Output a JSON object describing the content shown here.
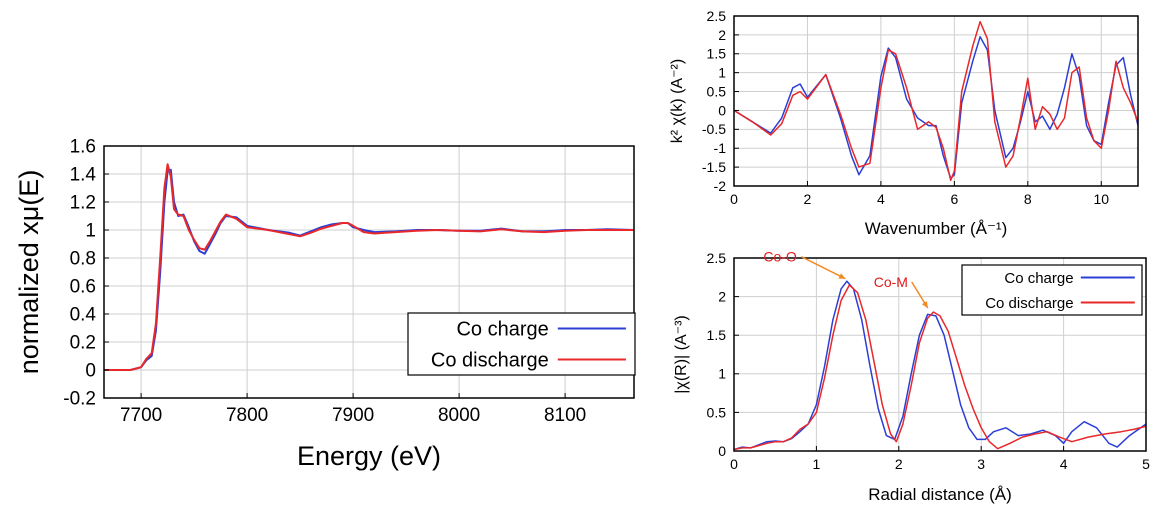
{
  "colors": {
    "charge": "#2b3fd6",
    "discharge": "#e8282b",
    "annotation": "#e31a1c",
    "arrow": "#f08a24",
    "grid": "#cfcfcf"
  },
  "chart_data": [
    {
      "id": "xanes",
      "type": "line",
      "title": "",
      "xlabel": "Energy    (eV)",
      "ylabel": "normalized xμ(E)",
      "xlim": [
        7665,
        8165
      ],
      "ylim": [
        -0.2,
        1.6
      ],
      "xticks": [
        7700,
        7800,
        7900,
        8000,
        8100
      ],
      "yticks": [
        -0.2,
        0,
        0.2,
        0.4,
        0.6,
        0.8,
        1,
        1.2,
        1.4,
        1.6
      ],
      "xtick_labels": [
        "7700",
        "7800",
        "7900",
        "8000",
        "8100"
      ],
      "ytick_labels": [
        "-0.2",
        "0",
        "0.2",
        "0.4",
        "0.6",
        "0.8",
        "1",
        "1.2",
        "1.4",
        "1.6"
      ],
      "grid": true,
      "legend_position": "bottom-right",
      "series": [
        {
          "name": "Co charge",
          "color_key": "charge",
          "x": [
            7665,
            7690,
            7700,
            7705,
            7710,
            7714,
            7718,
            7722,
            7725,
            7728,
            7731,
            7735,
            7740,
            7745,
            7750,
            7755,
            7760,
            7765,
            7770,
            7775,
            7780,
            7790,
            7800,
            7820,
            7840,
            7850,
            7860,
            7870,
            7880,
            7890,
            7895,
            7900,
            7910,
            7920,
            7940,
            7960,
            7980,
            8000,
            8020,
            8040,
            8060,
            8080,
            8100,
            8120,
            8140,
            8165
          ],
          "y": [
            0,
            0,
            0.02,
            0.07,
            0.1,
            0.28,
            0.7,
            1.2,
            1.42,
            1.43,
            1.2,
            1.1,
            1.11,
            1.02,
            0.92,
            0.85,
            0.83,
            0.9,
            0.97,
            1.05,
            1.1,
            1.09,
            1.03,
            1.0,
            0.98,
            0.96,
            0.99,
            1.02,
            1.04,
            1.05,
            1.05,
            1.02,
            1.0,
            0.985,
            0.99,
            1.0,
            1.0,
            0.995,
            0.995,
            1.01,
            0.99,
            0.99,
            1.0,
            1.0,
            1.005,
            1.0
          ]
        },
        {
          "name": "Co discharge",
          "color_key": "discharge",
          "x": [
            7665,
            7690,
            7700,
            7705,
            7710,
            7714,
            7718,
            7722,
            7725,
            7728,
            7731,
            7735,
            7740,
            7745,
            7750,
            7755,
            7760,
            7765,
            7770,
            7775,
            7780,
            7790,
            7800,
            7820,
            7840,
            7850,
            7860,
            7870,
            7880,
            7890,
            7895,
            7900,
            7910,
            7920,
            7940,
            7960,
            7980,
            8000,
            8020,
            8040,
            8060,
            8080,
            8100,
            8120,
            8140,
            8165
          ],
          "y": [
            0,
            0,
            0.02,
            0.08,
            0.12,
            0.33,
            0.8,
            1.3,
            1.47,
            1.38,
            1.15,
            1.11,
            1.1,
            1.0,
            0.93,
            0.87,
            0.86,
            0.92,
            0.99,
            1.06,
            1.11,
            1.08,
            1.02,
            1.0,
            0.97,
            0.955,
            0.98,
            1.01,
            1.03,
            1.05,
            1.05,
            1.03,
            0.985,
            0.975,
            0.985,
            0.995,
            1.0,
            0.995,
            0.99,
            1.005,
            0.99,
            0.985,
            0.995,
            1.0,
            1.0,
            1.0
          ]
        }
      ]
    },
    {
      "id": "exafs_k",
      "type": "line",
      "title": "",
      "xlabel": "Wavenumber   (Å⁻¹)",
      "ylabel": "k² χ(k)    (A⁻²)",
      "xlim": [
        0,
        11
      ],
      "ylim": [
        -2,
        2.5
      ],
      "xticks": [
        0,
        2,
        4,
        6,
        8,
        10
      ],
      "yticks": [
        -2,
        -1.5,
        -1,
        -0.5,
        0,
        0.5,
        1,
        1.5,
        2,
        2.5
      ],
      "xtick_labels": [
        "0",
        "2",
        "4",
        "6",
        "8",
        "10"
      ],
      "ytick_labels": [
        "-2",
        "-1.5",
        "-1",
        "-0.5",
        "0",
        "0.5",
        "1",
        "1.5",
        "2",
        "2.5"
      ],
      "grid": true,
      "series": [
        {
          "name": "Co charge",
          "color_key": "charge",
          "x": [
            0,
            0.5,
            1.0,
            1.3,
            1.6,
            1.8,
            2.0,
            2.5,
            2.9,
            3.2,
            3.4,
            3.7,
            4.0,
            4.2,
            4.4,
            4.7,
            5.0,
            5.3,
            5.5,
            5.7,
            5.9,
            6.0,
            6.2,
            6.5,
            6.7,
            6.9,
            7.1,
            7.4,
            7.6,
            7.8,
            8.0,
            8.2,
            8.4,
            8.6,
            8.8,
            9.0,
            9.2,
            9.4,
            9.6,
            9.8,
            10.0,
            10.2,
            10.4,
            10.6,
            10.8,
            11.0
          ],
          "y": [
            0,
            -0.3,
            -0.6,
            -0.2,
            0.6,
            0.7,
            0.35,
            0.95,
            -0.2,
            -1.2,
            -1.7,
            -1.2,
            0.9,
            1.65,
            1.4,
            0.3,
            -0.2,
            -0.4,
            -0.4,
            -1.2,
            -1.8,
            -1.7,
            0.2,
            1.3,
            1.95,
            1.6,
            0.0,
            -1.25,
            -1.0,
            -0.3,
            0.5,
            -0.3,
            -0.15,
            -0.5,
            -0.1,
            0.6,
            1.5,
            0.9,
            -0.4,
            -0.8,
            -0.9,
            0.2,
            1.2,
            1.4,
            0.4,
            -0.4
          ]
        },
        {
          "name": "Co discharge",
          "color_key": "discharge",
          "x": [
            0,
            0.5,
            1.0,
            1.3,
            1.6,
            1.8,
            2.0,
            2.5,
            2.9,
            3.2,
            3.4,
            3.7,
            4.0,
            4.2,
            4.4,
            4.7,
            5.0,
            5.3,
            5.5,
            5.7,
            5.9,
            6.0,
            6.2,
            6.5,
            6.7,
            6.9,
            7.1,
            7.4,
            7.6,
            7.8,
            8.0,
            8.2,
            8.4,
            8.6,
            8.8,
            9.0,
            9.2,
            9.4,
            9.6,
            9.8,
            10.0,
            10.2,
            10.4,
            10.6,
            10.8,
            11.0
          ],
          "y": [
            0,
            -0.3,
            -0.65,
            -0.35,
            0.4,
            0.5,
            0.3,
            0.95,
            -0.1,
            -1.0,
            -1.5,
            -1.4,
            0.6,
            1.6,
            1.5,
            0.6,
            -0.5,
            -0.3,
            -0.45,
            -1.0,
            -1.85,
            -1.6,
            0.5,
            1.7,
            2.35,
            1.9,
            -0.3,
            -1.5,
            -1.2,
            -0.2,
            0.85,
            -0.5,
            0.1,
            -0.1,
            -0.5,
            -0.2,
            1.0,
            1.15,
            -0.2,
            -0.8,
            -1.0,
            0.0,
            1.3,
            0.6,
            0.2,
            -0.3
          ]
        }
      ]
    },
    {
      "id": "exafs_r",
      "type": "line",
      "title": "",
      "xlabel": "Radial distance    (Å)",
      "ylabel": "|χ(R)|    (A⁻³)",
      "xlim": [
        0,
        5
      ],
      "ylim": [
        0,
        2.5
      ],
      "xticks": [
        0,
        1,
        2,
        3,
        4,
        5
      ],
      "yticks": [
        0,
        0.5,
        1,
        1.5,
        2,
        2.5
      ],
      "xtick_labels": [
        "0",
        "1",
        "2",
        "3",
        "4",
        "5"
      ],
      "ytick_labels": [
        "0",
        "0.5",
        "1",
        "1.5",
        "2",
        "2.5"
      ],
      "grid": true,
      "legend_position": "top-right",
      "annotations": [
        {
          "text": "Co-O",
          "x": 1.4,
          "y": 2.18
        },
        {
          "text": "Co-M",
          "x": 2.4,
          "y": 1.8
        }
      ],
      "series": [
        {
          "name": "Co charge",
          "color_key": "charge",
          "x": [
            0,
            0.1,
            0.2,
            0.3,
            0.4,
            0.5,
            0.6,
            0.7,
            0.8,
            0.9,
            1.0,
            1.1,
            1.2,
            1.3,
            1.37,
            1.45,
            1.55,
            1.65,
            1.75,
            1.85,
            1.95,
            2.05,
            2.15,
            2.25,
            2.35,
            2.45,
            2.55,
            2.65,
            2.75,
            2.85,
            2.95,
            3.05,
            3.15,
            3.3,
            3.45,
            3.6,
            3.75,
            3.9,
            4.0,
            4.1,
            4.25,
            4.4,
            4.55,
            4.65,
            4.8,
            5.0
          ],
          "y": [
            0.02,
            0.05,
            0.04,
            0.08,
            0.12,
            0.13,
            0.12,
            0.16,
            0.25,
            0.35,
            0.6,
            1.1,
            1.7,
            2.1,
            2.2,
            2.1,
            1.7,
            1.1,
            0.55,
            0.2,
            0.15,
            0.45,
            1.0,
            1.5,
            1.77,
            1.75,
            1.5,
            1.05,
            0.6,
            0.3,
            0.15,
            0.15,
            0.25,
            0.3,
            0.2,
            0.22,
            0.27,
            0.2,
            0.1,
            0.25,
            0.38,
            0.3,
            0.1,
            0.05,
            0.2,
            0.35
          ]
        },
        {
          "name": "Co discharge",
          "color_key": "discharge",
          "x": [
            0,
            0.1,
            0.2,
            0.3,
            0.4,
            0.5,
            0.6,
            0.7,
            0.8,
            0.9,
            1.0,
            1.1,
            1.2,
            1.3,
            1.4,
            1.5,
            1.6,
            1.7,
            1.8,
            1.9,
            1.97,
            2.05,
            2.15,
            2.25,
            2.35,
            2.42,
            2.5,
            2.6,
            2.7,
            2.8,
            2.9,
            3.0,
            3.1,
            3.2,
            3.35,
            3.5,
            3.65,
            3.8,
            3.95,
            4.1,
            4.3,
            4.5,
            4.7,
            4.85,
            5.0
          ],
          "y": [
            0.02,
            0.04,
            0.04,
            0.07,
            0.1,
            0.12,
            0.12,
            0.17,
            0.28,
            0.35,
            0.5,
            0.95,
            1.5,
            1.95,
            2.15,
            2.05,
            1.7,
            1.15,
            0.6,
            0.22,
            0.12,
            0.35,
            0.85,
            1.4,
            1.72,
            1.8,
            1.75,
            1.55,
            1.2,
            0.85,
            0.55,
            0.3,
            0.12,
            0.03,
            0.1,
            0.18,
            0.22,
            0.25,
            0.18,
            0.12,
            0.18,
            0.22,
            0.25,
            0.28,
            0.32
          ]
        }
      ]
    }
  ]
}
